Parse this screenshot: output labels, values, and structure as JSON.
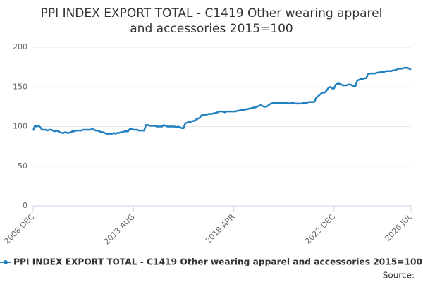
{
  "chart_data": {
    "type": "line",
    "title": [
      "PPI INDEX EXPORT TOTAL - C1419 Other wearing apparel",
      "and accessories 2015=100"
    ],
    "categories": [
      "2008 DEC",
      null,
      null,
      null,
      null,
      null,
      null,
      null,
      null,
      null,
      null,
      null,
      null,
      null,
      null,
      null,
      null,
      null,
      null,
      null,
      null,
      null,
      null,
      null,
      null,
      null,
      null,
      null,
      null,
      null,
      null,
      null,
      null,
      null,
      null,
      null,
      null,
      null,
      null,
      null,
      null,
      null,
      null,
      null,
      null,
      null,
      null,
      null,
      null,
      null,
      null,
      null,
      null,
      null,
      null,
      null,
      "2013 AUG",
      null,
      null,
      null,
      null,
      null,
      null,
      null,
      null,
      null,
      null,
      null,
      null,
      null,
      null,
      null,
      null,
      null,
      null,
      null,
      null,
      null,
      null,
      null,
      null,
      null,
      null,
      null,
      null,
      null,
      null,
      null,
      null,
      null,
      null,
      null,
      null,
      null,
      null,
      null,
      null,
      null,
      null,
      null,
      null,
      null,
      null,
      null,
      null,
      null,
      null,
      null,
      null,
      null,
      null,
      null,
      "2018 APR",
      null,
      null,
      null,
      null,
      null,
      null,
      null,
      null,
      null,
      null,
      null,
      null,
      null,
      null,
      null,
      null,
      null,
      null,
      null,
      null,
      null,
      null,
      null,
      null,
      null,
      null,
      null,
      null,
      null,
      null,
      null,
      null,
      null,
      null,
      null,
      null,
      null,
      null,
      null,
      null,
      null,
      null,
      null,
      null,
      null,
      null,
      null,
      null,
      null,
      null,
      null,
      null,
      null,
      null,
      null,
      "2022 DEC",
      null,
      null,
      null,
      null,
      null,
      null,
      null,
      null,
      null,
      null,
      null,
      null,
      null,
      null,
      null,
      null,
      null,
      null,
      null,
      null,
      null,
      null,
      null,
      null,
      null,
      null,
      null,
      null,
      null,
      null,
      null,
      null,
      null,
      null,
      null,
      null,
      null,
      null,
      null,
      null,
      null,
      null,
      "2026 JUL"
    ],
    "series": [
      {
        "name": "PPI INDEX EXPORT TOTAL - C1419 Other wearing apparel and accessories 2015=100",
        "color": "#1f7fc0",
        "values": [
          95,
          101,
          100,
          101,
          99,
          96,
          96,
          96,
          95,
          96,
          96,
          95,
          94,
          95,
          94,
          93,
          92,
          92,
          93,
          92,
          92,
          93,
          94,
          94,
          95,
          95,
          95,
          95,
          96,
          96,
          96,
          96,
          96,
          97,
          96,
          95,
          95,
          94,
          93,
          93,
          92,
          91,
          91,
          91,
          91,
          92,
          91,
          92,
          92,
          93,
          93,
          94,
          94,
          94,
          97,
          97,
          96,
          96,
          96,
          95,
          95,
          95,
          95,
          102,
          102,
          101,
          101,
          101,
          101,
          100,
          100,
          100,
          100,
          102,
          101,
          100,
          100,
          100,
          100,
          100,
          99,
          100,
          99,
          98,
          98,
          104,
          105,
          106,
          106,
          107,
          107,
          109,
          110,
          111,
          114,
          115,
          115,
          115,
          116,
          116,
          116,
          117,
          117,
          118,
          119,
          119,
          119,
          118,
          119,
          119,
          119,
          119,
          119,
          119,
          120,
          120,
          121,
          121,
          121,
          122,
          122,
          123,
          123,
          124,
          124,
          125,
          126,
          127,
          126,
          125,
          125,
          126,
          128,
          129,
          130,
          130,
          130,
          130,
          130,
          130,
          130,
          130,
          130,
          129,
          130,
          130,
          129,
          129,
          129,
          129,
          129,
          130,
          130,
          130,
          131,
          131,
          131,
          131,
          136,
          138,
          140,
          142,
          143,
          143,
          146,
          149,
          150,
          148,
          148,
          153,
          154,
          154,
          153,
          152,
          152,
          152,
          153,
          153,
          152,
          151,
          151,
          158,
          159,
          160,
          160,
          161,
          161,
          166,
          167,
          167,
          167,
          167,
          168,
          168,
          169,
          169,
          169,
          170,
          170,
          170,
          170,
          171,
          171,
          172,
          173,
          173,
          173,
          174,
          174,
          174,
          173,
          172
        ]
      }
    ],
    "ylim": [
      0,
      200
    ],
    "yticks": [
      0,
      50,
      100,
      150,
      200
    ],
    "grid": true,
    "source": "Source:"
  }
}
